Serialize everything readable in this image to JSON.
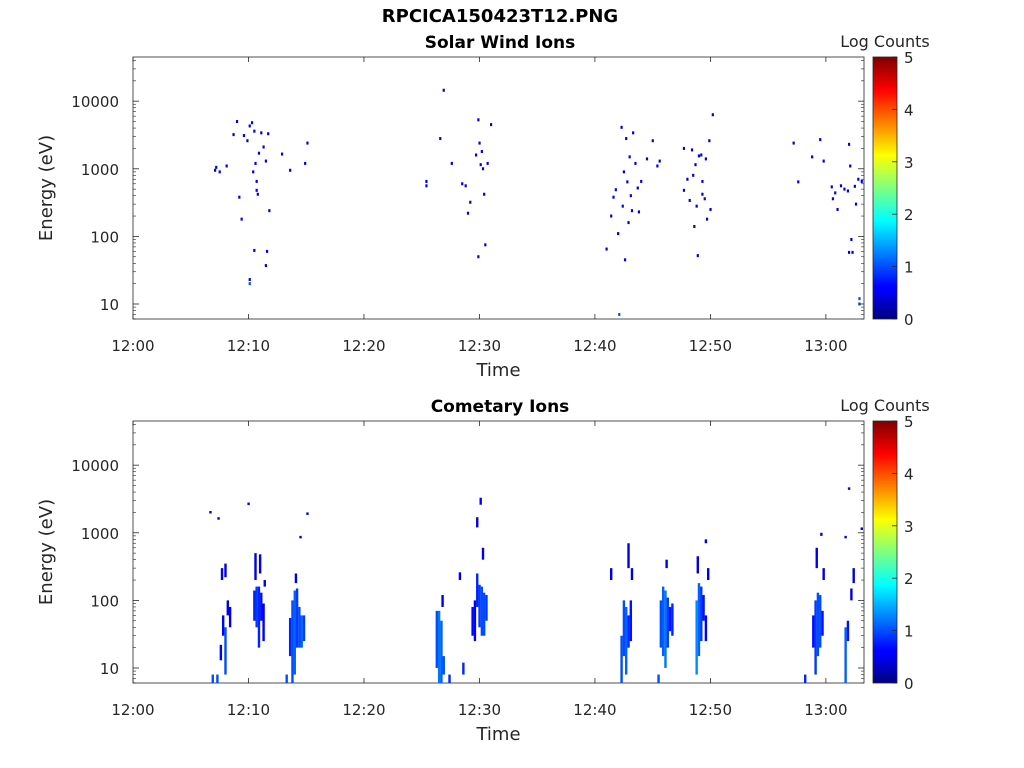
{
  "figure": {
    "title": "RPCICA150423T12.PNG"
  },
  "chart_data": [
    {
      "type": "heatmap",
      "title": "Solar Wind Ions",
      "xlabel": "Time",
      "ylabel": "Energy (eV)",
      "x_ticks": [
        "12:00",
        "12:10",
        "12:20",
        "12:30",
        "12:40",
        "12:50",
        "13:00"
      ],
      "x_range_minutes": [
        0,
        63.3
      ],
      "y_ticks": [
        "10",
        "100",
        "1000",
        "10000"
      ],
      "y_range": [
        6,
        45000
      ],
      "y_scale": "log",
      "colorbar": {
        "label": "Log Counts",
        "ticks": [
          "0",
          "1",
          "2",
          "3",
          "4",
          "5"
        ],
        "range": [
          0,
          5
        ],
        "colormap": "jet"
      },
      "points": [
        [
          7.1,
          950,
          0.5
        ],
        [
          7.2,
          1050,
          0.5
        ],
        [
          7.5,
          900,
          0.5
        ],
        [
          8.1,
          1100,
          0.5
        ],
        [
          8.7,
          3200,
          0.5
        ],
        [
          9.0,
          5000,
          0.5
        ],
        [
          9.2,
          380,
          0.5
        ],
        [
          9.4,
          180,
          0.5
        ],
        [
          9.6,
          3100,
          0.5
        ],
        [
          9.9,
          2600,
          0.5
        ],
        [
          10.1,
          4300,
          0.5
        ],
        [
          10.3,
          4800,
          0.5
        ],
        [
          10.5,
          3600,
          0.5
        ],
        [
          10.6,
          1200,
          0.5
        ],
        [
          10.7,
          650,
          0.5
        ],
        [
          10.8,
          420,
          0.5
        ],
        [
          10.9,
          1700,
          0.5
        ],
        [
          11.1,
          3400,
          0.5
        ],
        [
          11.3,
          2100,
          0.5
        ],
        [
          11.5,
          1300,
          0.5
        ],
        [
          11.7,
          3300,
          0.5
        ],
        [
          11.8,
          240,
          0.5
        ],
        [
          11.6,
          60,
          0.5
        ],
        [
          11.5,
          37,
          0.5
        ],
        [
          10.5,
          62,
          0.5
        ],
        [
          10.1,
          20,
          1.0
        ],
        [
          10.1,
          23,
          0.5
        ],
        [
          12.9,
          1650,
          0.5
        ],
        [
          13.6,
          950,
          0.5
        ],
        [
          14.9,
          1200,
          0.5
        ],
        [
          15.1,
          2400,
          0.5
        ],
        [
          10.4,
          900,
          0.5
        ],
        [
          10.7,
          480,
          0.5
        ],
        [
          25.4,
          650,
          0.6
        ],
        [
          25.4,
          560,
          0.6
        ],
        [
          26.6,
          2800,
          0.5
        ],
        [
          26.9,
          14500,
          0.5
        ],
        [
          27.6,
          1200,
          0.5
        ],
        [
          28.5,
          600,
          0.5
        ],
        [
          28.8,
          560,
          0.5
        ],
        [
          29.0,
          220,
          0.5
        ],
        [
          29.2,
          320,
          0.5
        ],
        [
          29.7,
          1600,
          0.5
        ],
        [
          29.9,
          5300,
          0.5
        ],
        [
          29.9,
          50,
          0.5
        ],
        [
          30.0,
          2400,
          0.5
        ],
        [
          30.1,
          1150,
          0.5
        ],
        [
          30.3,
          1000,
          0.5
        ],
        [
          30.4,
          420,
          0.5
        ],
        [
          30.5,
          75,
          0.5
        ],
        [
          30.7,
          1200,
          0.5
        ],
        [
          31.0,
          4500,
          0.5
        ],
        [
          30.2,
          1800,
          0.5
        ],
        [
          41.0,
          65,
          0.5
        ],
        [
          41.4,
          200,
          0.5
        ],
        [
          41.6,
          380,
          0.5
        ],
        [
          41.8,
          490,
          0.5
        ],
        [
          42.0,
          110,
          0.5
        ],
        [
          42.1,
          7,
          1.0
        ],
        [
          42.3,
          4100,
          0.5
        ],
        [
          42.4,
          280,
          0.5
        ],
        [
          42.5,
          900,
          0.5
        ],
        [
          42.6,
          45,
          0.5
        ],
        [
          42.7,
          2800,
          0.5
        ],
        [
          42.8,
          640,
          0.5
        ],
        [
          43.0,
          1500,
          0.5
        ],
        [
          43.1,
          400,
          0.5
        ],
        [
          43.2,
          240,
          0.5
        ],
        [
          43.3,
          3400,
          0.5
        ],
        [
          43.5,
          1200,
          0.5
        ],
        [
          43.7,
          520,
          0.5
        ],
        [
          43.8,
          230,
          0.5
        ],
        [
          44.0,
          650,
          0.5
        ],
        [
          44.5,
          1400,
          0.5
        ],
        [
          45.0,
          2600,
          0.5
        ],
        [
          45.4,
          1100,
          0.5
        ],
        [
          45.6,
          1300,
          0.5
        ],
        [
          42.9,
          160,
          0.5
        ],
        [
          47.7,
          480,
          0.5
        ],
        [
          47.7,
          2000,
          0.5
        ],
        [
          48.0,
          700,
          0.5
        ],
        [
          48.2,
          340,
          0.5
        ],
        [
          48.4,
          1900,
          0.5
        ],
        [
          48.5,
          800,
          0.5
        ],
        [
          48.7,
          1150,
          0.5
        ],
        [
          48.8,
          280,
          0.5
        ],
        [
          48.9,
          52,
          0.5
        ],
        [
          49.0,
          1550,
          0.5
        ],
        [
          49.2,
          1600,
          0.5
        ],
        [
          49.3,
          650,
          0.5
        ],
        [
          49.5,
          360,
          0.5
        ],
        [
          49.6,
          1400,
          0.5
        ],
        [
          49.7,
          180,
          0.5
        ],
        [
          49.9,
          2600,
          0.5
        ],
        [
          50.0,
          250,
          0.5
        ],
        [
          50.2,
          6300,
          0.5
        ],
        [
          48.6,
          140,
          0.5
        ],
        [
          49.3,
          420,
          0.5
        ],
        [
          57.2,
          2400,
          0.5
        ],
        [
          57.6,
          640,
          0.5
        ],
        [
          58.8,
          1500,
          0.5
        ],
        [
          59.5,
          2700,
          0.5
        ],
        [
          59.8,
          1300,
          0.5
        ],
        [
          60.5,
          540,
          0.5
        ],
        [
          60.8,
          440,
          0.5
        ],
        [
          61.0,
          250,
          0.5
        ],
        [
          61.3,
          560,
          0.5
        ],
        [
          61.6,
          500,
          0.5
        ],
        [
          61.9,
          470,
          0.5
        ],
        [
          62.1,
          1100,
          0.5
        ],
        [
          62.2,
          90,
          0.5
        ],
        [
          62.0,
          58,
          0.5
        ],
        [
          62.3,
          58,
          0.5
        ],
        [
          62.5,
          550,
          0.6
        ],
        [
          62.6,
          300,
          0.5
        ],
        [
          62.8,
          700,
          0.5
        ],
        [
          62.9,
          10,
          1.0
        ],
        [
          62.9,
          12,
          1.0
        ],
        [
          63.1,
          650,
          0.5
        ],
        [
          62.0,
          2300,
          0.5
        ],
        [
          60.6,
          360,
          0.5
        ]
      ]
    },
    {
      "type": "heatmap",
      "title": "Cometary Ions",
      "xlabel": "Time",
      "ylabel": "Energy (eV)",
      "x_ticks": [
        "12:00",
        "12:10",
        "12:20",
        "12:30",
        "12:40",
        "12:50",
        "13:00"
      ],
      "x_range_minutes": [
        0,
        63.3
      ],
      "y_ticks": [
        "10",
        "100",
        "1000",
        "10000"
      ],
      "y_range": [
        6,
        45000
      ],
      "y_scale": "log",
      "colorbar": {
        "label": "Log Counts",
        "ticks": [
          "0",
          "1",
          "2",
          "3",
          "4",
          "5"
        ],
        "range": [
          0,
          5
        ],
        "colormap": "jet"
      },
      "columns": [
        [
          6.7,
          1950,
          2100,
          0.5
        ],
        [
          7.4,
          1650,
          1700,
          0.5
        ],
        [
          10.0,
          2600,
          2800,
          0.6
        ],
        [
          14.5,
          850,
          900,
          0.5
        ],
        [
          15.1,
          1900,
          2000,
          0.6
        ],
        [
          6.9,
          6,
          8,
          1.0
        ],
        [
          7.3,
          6,
          8,
          1.0
        ],
        [
          7.6,
          13,
          22,
          0.6
        ],
        [
          7.8,
          30,
          60,
          0.6
        ],
        [
          7.7,
          200,
          300,
          0.5
        ],
        [
          8.0,
          8,
          40,
          1.0
        ],
        [
          8.2,
          60,
          100,
          0.5
        ],
        [
          8.4,
          40,
          80,
          0.5
        ],
        [
          8.0,
          220,
          350,
          0.5
        ],
        [
          10.5,
          50,
          140,
          0.8
        ],
        [
          10.7,
          40,
          160,
          0.9
        ],
        [
          10.9,
          20,
          160,
          0.8
        ],
        [
          11.1,
          50,
          130,
          0.7
        ],
        [
          11.3,
          25,
          90,
          0.6
        ],
        [
          10.6,
          200,
          500,
          0.5
        ],
        [
          11.0,
          250,
          480,
          0.5
        ],
        [
          11.4,
          160,
          200,
          0.5
        ],
        [
          13.3,
          6,
          8,
          1.0
        ],
        [
          13.6,
          15,
          55,
          0.8
        ],
        [
          13.8,
          6,
          100,
          1.0
        ],
        [
          14.0,
          8,
          140,
          1.1
        ],
        [
          14.2,
          20,
          150,
          0.9
        ],
        [
          14.4,
          20,
          80,
          1.0
        ],
        [
          14.6,
          20,
          60,
          1.1
        ],
        [
          14.8,
          25,
          60,
          0.9
        ],
        [
          14.1,
          180,
          250,
          0.5
        ],
        [
          26.3,
          10,
          70,
          1.0
        ],
        [
          26.5,
          6,
          70,
          1.2
        ],
        [
          26.7,
          6,
          50,
          1.1
        ],
        [
          26.9,
          8,
          15,
          1.0
        ],
        [
          26.8,
          80,
          120,
          0.5
        ],
        [
          27.4,
          6,
          8,
          0.8
        ],
        [
          28.3,
          200,
          260,
          0.5
        ],
        [
          28.6,
          8,
          12,
          0.8
        ],
        [
          29.4,
          30,
          80,
          0.6
        ],
        [
          29.6,
          25,
          100,
          0.6
        ],
        [
          29.8,
          80,
          250,
          0.8
        ],
        [
          30.0,
          40,
          170,
          0.9
        ],
        [
          30.2,
          30,
          160,
          1.0
        ],
        [
          30.4,
          30,
          130,
          1.0
        ],
        [
          30.6,
          50,
          120,
          0.9
        ],
        [
          29.8,
          1200,
          1700,
          0.5
        ],
        [
          30.1,
          2600,
          3300,
          0.6
        ],
        [
          30.3,
          400,
          600,
          0.5
        ],
        [
          42.3,
          6,
          30,
          1.0
        ],
        [
          42.5,
          15,
          100,
          1.0
        ],
        [
          42.7,
          8,
          80,
          1.1
        ],
        [
          42.9,
          20,
          60,
          0.8
        ],
        [
          43.1,
          25,
          100,
          0.7
        ],
        [
          42.9,
          300,
          700,
          0.5
        ],
        [
          43.2,
          200,
          300,
          0.5
        ],
        [
          41.4,
          200,
          300,
          0.5
        ],
        [
          45.5,
          6,
          8,
          1.0
        ],
        [
          45.7,
          20,
          100,
          1.0
        ],
        [
          45.9,
          15,
          160,
          1.1
        ],
        [
          46.1,
          10,
          140,
          1.2
        ],
        [
          46.3,
          20,
          110,
          0.9
        ],
        [
          46.5,
          35,
          80,
          0.7
        ],
        [
          46.7,
          30,
          90,
          0.8
        ],
        [
          46.2,
          300,
          400,
          0.5
        ],
        [
          48.8,
          8,
          100,
          1.3
        ],
        [
          49.0,
          15,
          180,
          1.1
        ],
        [
          49.2,
          25,
          160,
          0.9
        ],
        [
          49.4,
          50,
          120,
          0.7
        ],
        [
          49.6,
          25,
          60,
          0.6
        ],
        [
          48.9,
          250,
          450,
          0.5
        ],
        [
          49.6,
          700,
          800,
          0.5
        ],
        [
          49.8,
          200,
          300,
          0.5
        ],
        [
          58.9,
          20,
          60,
          0.7
        ],
        [
          59.1,
          8,
          100,
          0.9
        ],
        [
          59.3,
          15,
          130,
          1.0
        ],
        [
          59.5,
          20,
          120,
          1.0
        ],
        [
          59.7,
          30,
          70,
          0.7
        ],
        [
          59.2,
          300,
          600,
          0.5
        ],
        [
          59.8,
          200,
          300,
          0.5
        ],
        [
          58.2,
          6,
          8,
          0.8
        ],
        [
          61.7,
          6,
          40,
          1.1
        ],
        [
          61.9,
          25,
          50,
          0.7
        ],
        [
          62.0,
          4400,
          4700,
          0.6
        ],
        [
          61.7,
          850,
          900,
          0.5
        ],
        [
          62.4,
          180,
          300,
          0.5
        ],
        [
          62.2,
          100,
          150,
          0.5
        ],
        [
          63.1,
          1100,
          1200,
          0.5
        ],
        [
          59.6,
          900,
          1000,
          0.5
        ]
      ]
    }
  ]
}
